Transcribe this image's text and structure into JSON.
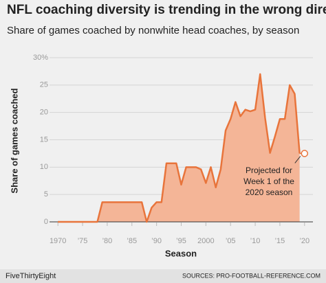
{
  "chart_data": {
    "type": "area",
    "title": "NFL coaching diversity is trending in the wrong direction",
    "subtitle": "Share of games coached by nonwhite head coaches, by season",
    "x_label": "Season",
    "y_label": "Share of games coached",
    "x": [
      1970,
      1971,
      1972,
      1973,
      1974,
      1975,
      1976,
      1977,
      1978,
      1979,
      1980,
      1981,
      1982,
      1983,
      1984,
      1985,
      1986,
      1987,
      1988,
      1989,
      1990,
      1991,
      1992,
      1993,
      1994,
      1995,
      1996,
      1997,
      1998,
      1999,
      2000,
      2001,
      2002,
      2003,
      2004,
      2005,
      2006,
      2007,
      2008,
      2009,
      2010,
      2011,
      2012,
      2013,
      2014,
      2015,
      2016,
      2017,
      2018,
      2019,
      2020
    ],
    "series": [
      {
        "color": "#e8743b",
        "fill": "#f4b597",
        "values": [
          0,
          0,
          0,
          0,
          0,
          0,
          0,
          0,
          0,
          3.6,
          3.6,
          3.6,
          3.6,
          3.6,
          3.6,
          3.6,
          3.6,
          3.6,
          0,
          2.6,
          3.6,
          3.6,
          10.7,
          10.7,
          10.7,
          6.8,
          10,
          10,
          10,
          9.6,
          7.1,
          10,
          6.3,
          9.6,
          16.7,
          18.8,
          21.9,
          19.3,
          20.5,
          20.2,
          20.5,
          27,
          19,
          12.6,
          15.6,
          18.8,
          18.8,
          25,
          23.4,
          12.5,
          null
        ]
      }
    ],
    "projected": {
      "x": 2020,
      "value": 12.5,
      "annotation": [
        "Projected for",
        "Week 1 of the",
        "2020 season"
      ]
    },
    "xlim": [
      1968.3,
      2021.7
    ],
    "xticks": [
      1970,
      {
        "value": 1975,
        "label": "’75"
      },
      {
        "value": 1980,
        "label": "’80"
      },
      {
        "value": 1985,
        "label": "’85"
      },
      {
        "value": 1990,
        "label": "’90"
      },
      {
        "value": 1995,
        "label": "’95"
      },
      2000,
      {
        "value": 2005,
        "label": "’05"
      },
      {
        "value": 2010,
        "label": "’10"
      },
      {
        "value": 2015,
        "label": "’15"
      },
      {
        "value": 2020,
        "label": "’20"
      }
    ],
    "ylim": [
      0,
      30
    ],
    "yticks": [
      0,
      5,
      10,
      15,
      20,
      25,
      {
        "value": 30,
        "label": "30%"
      }
    ],
    "grid": true,
    "footer_left": "FiveThirtyEight",
    "footer_right": "SOURCES: PRO-FOOTBALL-REFERENCE.COM"
  }
}
